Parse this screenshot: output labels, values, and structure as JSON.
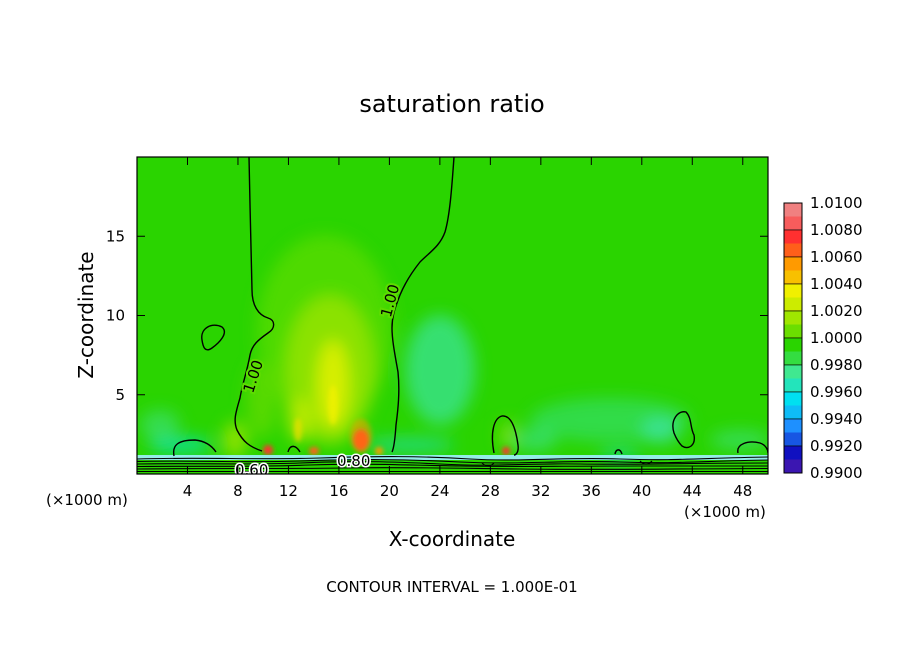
{
  "chart_data": {
    "type": "heatmap",
    "title": "saturation ratio",
    "xlabel": "X-coordinate",
    "ylabel": "Z-coordinate",
    "x_unit_left": "(×1000 m)",
    "x_unit_right": "(×1000 m)",
    "footer": "CONTOUR INTERVAL = 1.000E-01",
    "xlim": [
      0,
      50
    ],
    "ylim": [
      0,
      20
    ],
    "x_ticks": [
      4,
      8,
      12,
      16,
      20,
      24,
      28,
      32,
      36,
      40,
      44,
      48
    ],
    "y_ticks": [
      5,
      10,
      15
    ],
    "contour_labels": [
      {
        "text": "1.00",
        "x": 9.4,
        "z": 5.8
      },
      {
        "text": "1.00",
        "x": 20.5,
        "z": 10.6
      },
      {
        "text": "0.60",
        "x": 9.2,
        "z": 0.1
      },
      {
        "text": "0.80",
        "x": 17.2,
        "z": 0.6
      }
    ],
    "colorbar": {
      "levels": [
        "1.0100",
        "1.0080",
        "1.0060",
        "1.0040",
        "1.0020",
        "1.0000",
        "0.9980",
        "0.9960",
        "0.9940",
        "0.9920",
        "0.9900"
      ],
      "colors": [
        "#f08080",
        "#ff3030",
        "#ff9a00",
        "#f0f000",
        "#a0e600",
        "#2ad400",
        "#40e890",
        "#00e0f0",
        "#1e90ff",
        "#1010c0",
        "#7020a0"
      ]
    }
  }
}
